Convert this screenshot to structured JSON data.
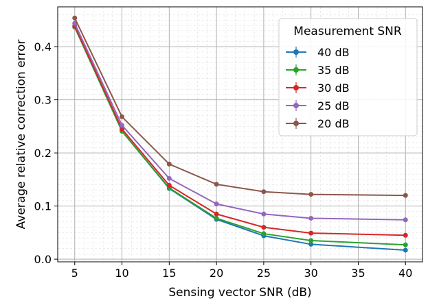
{
  "chart_data": {
    "type": "line",
    "title": "",
    "xlabel": "Sensing vector SNR (dB)",
    "ylabel": "Average relative correction error",
    "x": [
      5,
      10,
      15,
      20,
      25,
      30,
      40
    ],
    "xlim": [
      3.2,
      41.8
    ],
    "ylim": [
      -0.005,
      0.475
    ],
    "xticks": [
      5,
      10,
      15,
      20,
      25,
      30,
      35,
      40
    ],
    "yticks": [
      0.0,
      0.1,
      0.2,
      0.3,
      0.4
    ],
    "ytick_labels": [
      "0.0",
      "0.1",
      "0.2",
      "0.3",
      "0.4"
    ],
    "grid": true,
    "minor_grid": true,
    "legend_title": "Measurement SNR",
    "legend_position": "top-right",
    "series": [
      {
        "name": "40 dB",
        "color": "#1f77b4",
        "values": [
          0.437,
          0.241,
          0.133,
          0.075,
          0.044,
          0.028,
          0.017
        ]
      },
      {
        "name": "35 dB",
        "color": "#2ca02c",
        "values": [
          0.437,
          0.241,
          0.134,
          0.077,
          0.048,
          0.035,
          0.027
        ]
      },
      {
        "name": "30 dB",
        "color": "#d62728",
        "values": [
          0.439,
          0.245,
          0.139,
          0.085,
          0.06,
          0.049,
          0.045
        ]
      },
      {
        "name": "25 dB",
        "color": "#9467bd",
        "values": [
          0.444,
          0.252,
          0.152,
          0.104,
          0.085,
          0.077,
          0.074
        ]
      },
      {
        "name": "20 dB",
        "color": "#8c564b",
        "values": [
          0.454,
          0.268,
          0.179,
          0.141,
          0.127,
          0.122,
          0.12
        ]
      }
    ]
  }
}
